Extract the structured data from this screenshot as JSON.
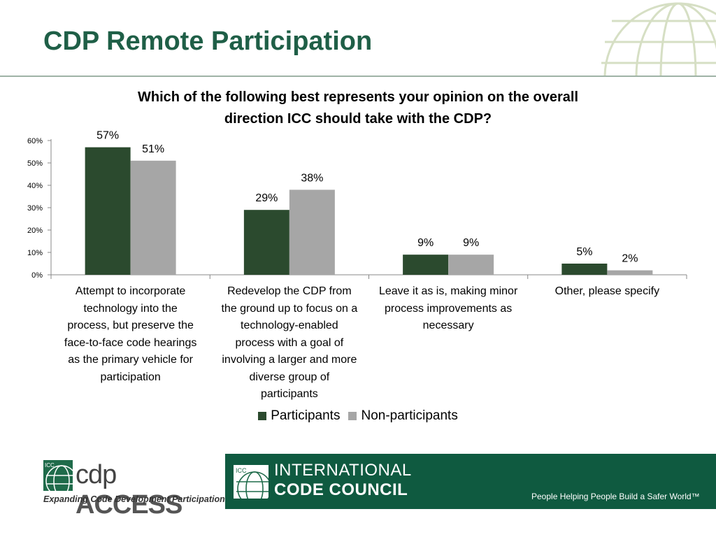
{
  "slide": {
    "title": "CDP Remote Participation"
  },
  "chart_data": {
    "type": "bar",
    "title": "Which of the following best represents your opinion on the overall direction ICC should take with the CDP?",
    "title_lines": [
      "Which of the following best represents your opinion on the overall",
      "direction ICC should take with the CDP?"
    ],
    "categories": [
      "Attempt to incorporate technology into the process, but preserve the face-to-face code hearings as the primary vehicle for participation",
      "Redevelop the CDP from the ground up to focus on a technology-enabled process with a goal of involving a larger and more diverse group of participants",
      "Leave it as is, making minor process improvements as necessary",
      "Other, please specify"
    ],
    "category_lines": [
      [
        "Attempt to incorporate",
        "technology into the",
        "process, but preserve the",
        "face-to-face code hearings",
        "as the primary vehicle for",
        "participation"
      ],
      [
        "Redevelop the CDP from",
        "the ground up to focus on a",
        "technology-enabled",
        "process with a goal of",
        "involving a larger and more",
        "diverse group of",
        "participants"
      ],
      [
        "Leave it as is, making minor",
        "process improvements as",
        "necessary"
      ],
      [
        "Other, please specify"
      ]
    ],
    "series": [
      {
        "name": "Participants",
        "values": [
          57,
          29,
          9,
          5
        ],
        "labels": [
          "57%",
          "29%",
          "9%",
          "5%"
        ],
        "color": "#2b4a2e"
      },
      {
        "name": "Non-participants",
        "values": [
          51,
          38,
          9,
          2
        ],
        "labels": [
          "51%",
          "38%",
          "9%",
          "2%"
        ],
        "color": "#a6a6a6"
      }
    ],
    "ylim": [
      0,
      60
    ],
    "yticks": [
      0,
      10,
      20,
      30,
      40,
      50,
      60
    ],
    "ytick_labels": [
      "0%",
      "10%",
      "20%",
      "30%",
      "40%",
      "50%",
      "60%"
    ],
    "grid": false,
    "legend_position": "bottom"
  },
  "footer": {
    "cdp_logo_text": "cdp",
    "cdp_logo_bold": "ACCESS",
    "cdp_tagline": "Expanding Code Development Participation",
    "icc_badge": "ICC",
    "icc_name_line1": "INTERNATIONAL",
    "icc_name_line2": "CODE COUNCIL",
    "icc_tagline": "People Helping People Build a Safer World™",
    "bar_color": "#0f5a40"
  }
}
